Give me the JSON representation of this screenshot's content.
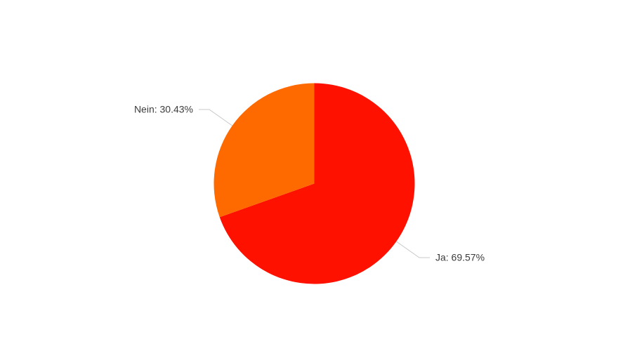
{
  "page": {
    "background_color": "#ffffff"
  },
  "chart_data": {
    "type": "pie",
    "categories": [
      "Ja",
      "Nein"
    ],
    "values": [
      69.57,
      30.43
    ],
    "slices": [
      {
        "label": "Ja",
        "value": 69.57,
        "display": "Ja: 69.57%",
        "color": "#ff1100"
      },
      {
        "label": "Nein",
        "value": 30.43,
        "display": "Nein: 30.43%",
        "color": "#ff6a00"
      }
    ],
    "start_angle_deg": 0,
    "direction": "clockwise",
    "legend": "none",
    "labels_outside": true,
    "leader_line_color": "#c8c8c8",
    "label_text_color": "#3c3c3c"
  }
}
